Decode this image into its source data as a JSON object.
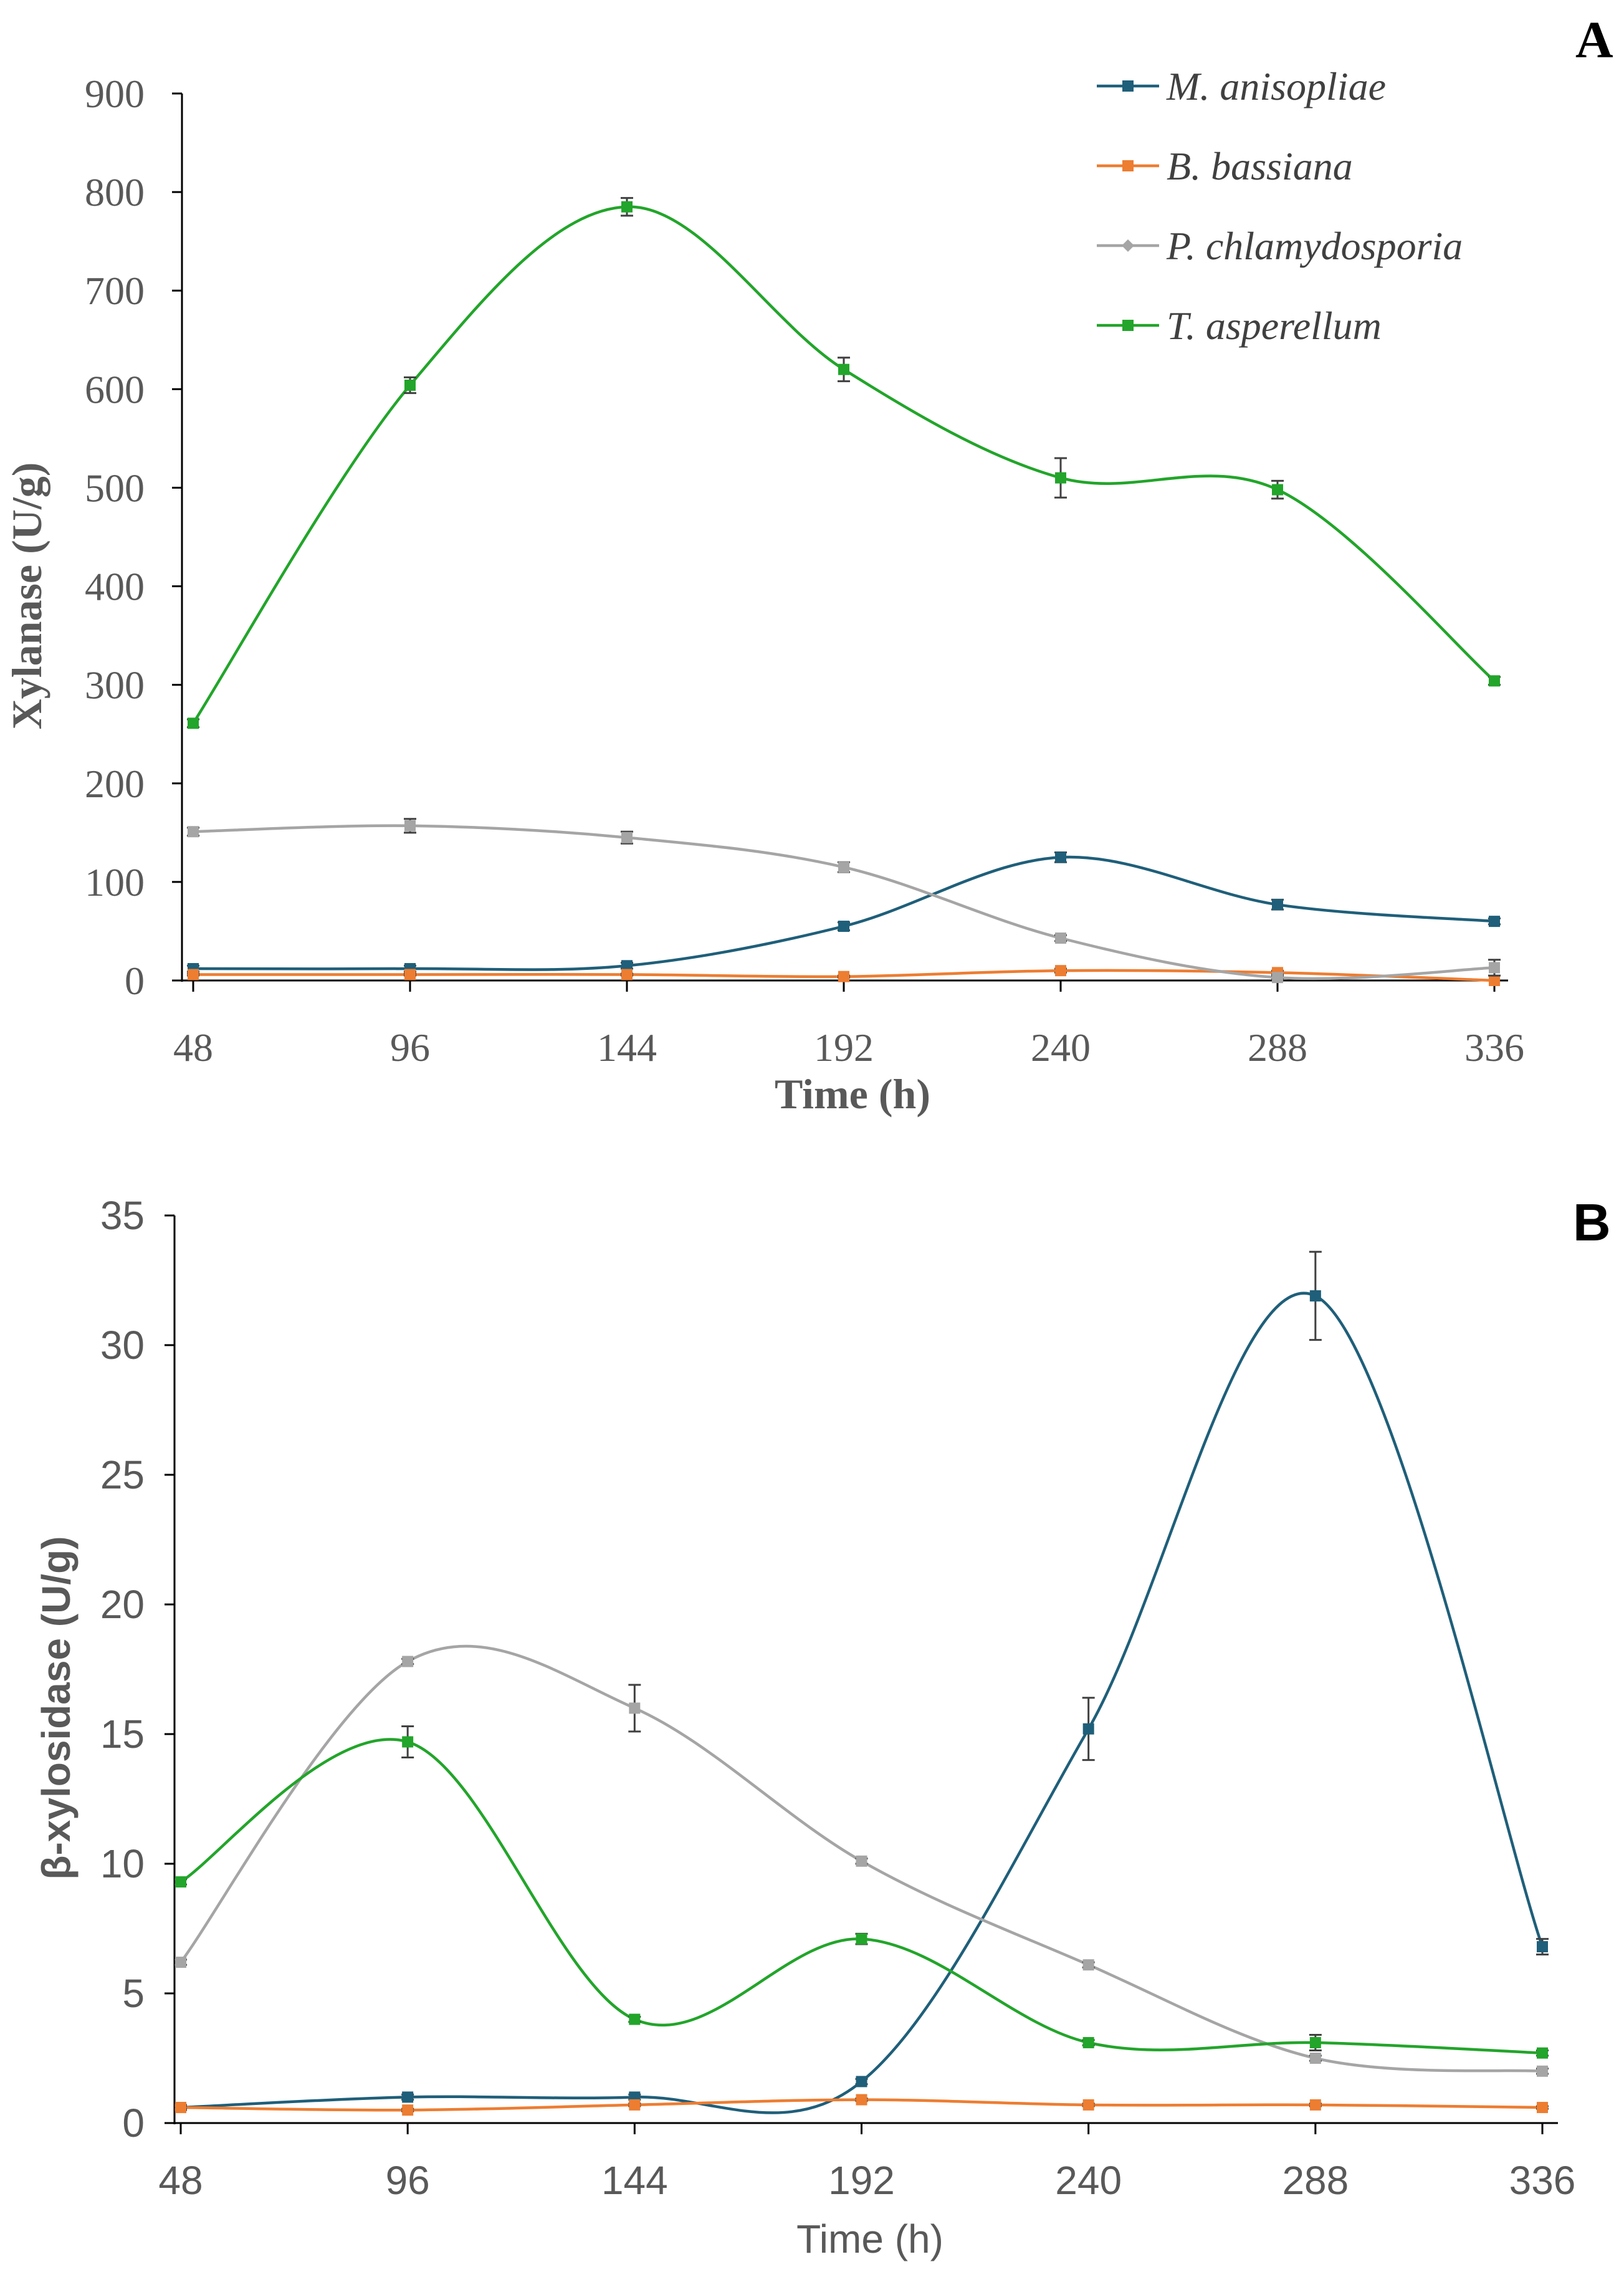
{
  "figure": {
    "colors": {
      "M. anisopliae": "#1f5f7a",
      "B. bassiana": "#ed7d31",
      "P. chlamydosporia": "#a5a5a5",
      "T. asperellum": "#22a52a",
      "axis": "#000000",
      "text": "#595959",
      "errorbar": "#404040"
    }
  },
  "chart_data": [
    {
      "panel": "A",
      "type": "line",
      "title": "",
      "xlabel": "Time (h)",
      "ylabel": "Xylanase (U/g)",
      "x": [
        48,
        96,
        144,
        192,
        240,
        288,
        336
      ],
      "x_tick_labels": [
        "48",
        "96",
        "144",
        "192",
        "240",
        "288",
        "336"
      ],
      "ylim": [
        0,
        900
      ],
      "y_ticks": [
        0,
        100,
        200,
        300,
        400,
        500,
        600,
        700,
        800,
        900
      ],
      "legend_position": "top-right",
      "smooth": true,
      "series": [
        {
          "name": "M. anisopliae",
          "values": [
            12,
            12,
            15,
            55,
            125,
            77,
            60
          ],
          "errors": [
            3,
            3,
            3,
            4,
            5,
            5,
            3
          ]
        },
        {
          "name": "B. bassiana",
          "values": [
            6,
            6,
            6,
            4,
            10,
            8,
            0
          ],
          "errors": [
            1,
            1,
            1,
            1,
            2,
            2,
            0
          ]
        },
        {
          "name": "P. chlamydosporia",
          "values": [
            151,
            157,
            145,
            115,
            43,
            3,
            13
          ],
          "errors": [
            4,
            7,
            6,
            5,
            3,
            2,
            8
          ]
        },
        {
          "name": "T. asperellum",
          "values": [
            261,
            604,
            785,
            620,
            510,
            498,
            304
          ],
          "errors": [
            4,
            8,
            9,
            12,
            20,
            9,
            4
          ]
        }
      ]
    },
    {
      "panel": "B",
      "type": "line",
      "title": "",
      "xlabel": "Time (h)",
      "ylabel": "β-xylosidase (U/g)",
      "x": [
        48,
        96,
        144,
        192,
        240,
        288,
        336
      ],
      "x_tick_labels": [
        "48",
        "96",
        "144",
        "192",
        "240",
        "288",
        "336"
      ],
      "ylim": [
        0,
        35
      ],
      "y_ticks": [
        0,
        5,
        10,
        15,
        20,
        25,
        30,
        35
      ],
      "legend": false,
      "smooth": true,
      "series": [
        {
          "name": "M. anisopliae",
          "values": [
            0.6,
            1.0,
            1.0,
            1.6,
            15.2,
            31.9,
            6.8
          ],
          "errors": [
            0.1,
            0.1,
            0.1,
            0.1,
            1.2,
            1.7,
            0.3
          ]
        },
        {
          "name": "B. bassiana",
          "values": [
            0.6,
            0.5,
            0.7,
            0.9,
            0.7,
            0.7,
            0.6
          ],
          "errors": [
            0.05,
            0.05,
            0.05,
            0.05,
            0.05,
            0.05,
            0.05
          ]
        },
        {
          "name": "P. chlamydosporia",
          "values": [
            6.2,
            17.8,
            16.0,
            10.1,
            6.1,
            2.5,
            2.0
          ],
          "errors": [
            0.1,
            0.1,
            0.9,
            0.1,
            0.1,
            0.1,
            0.1
          ]
        },
        {
          "name": "T. asperellum",
          "values": [
            9.3,
            14.7,
            4.0,
            7.1,
            3.1,
            3.1,
            2.7
          ],
          "errors": [
            0.1,
            0.6,
            0.1,
            0.2,
            0.1,
            0.3,
            0.1
          ]
        }
      ]
    }
  ]
}
